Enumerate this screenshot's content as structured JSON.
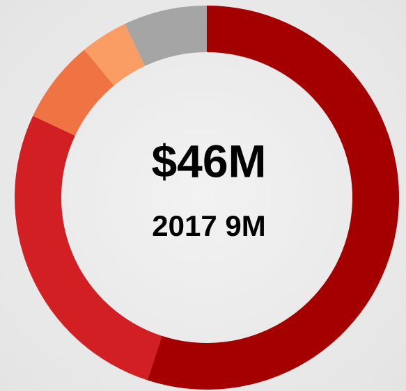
{
  "chart_data": {
    "type": "donut",
    "title": "$46M",
    "subtitle": "2017 9M",
    "categories": [
      null,
      null,
      null,
      null,
      null
    ],
    "values": [
      55,
      27,
      7,
      4,
      7
    ],
    "colors": [
      "#a50000",
      "#d11f23",
      "#f07344",
      "#fa9d64",
      "#a5a5a5"
    ]
  }
}
